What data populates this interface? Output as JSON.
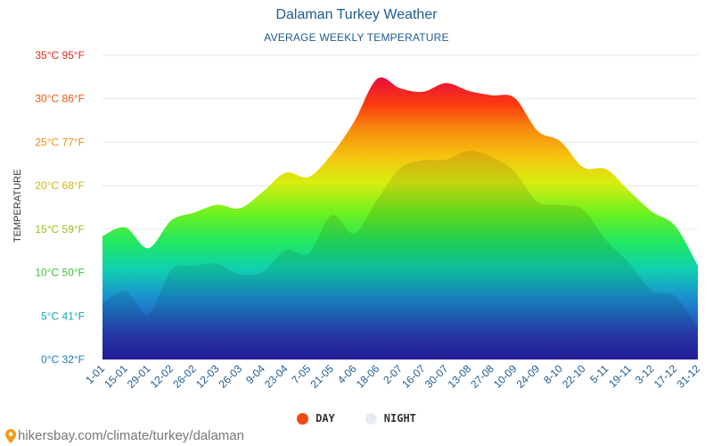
{
  "header": {
    "title": "Dalaman Turkey Weather",
    "subtitle": "AVERAGE WEEKLY TEMPERATURE"
  },
  "credit": {
    "text": "hikersbay.com/climate/turkey/dalaman"
  },
  "legend": {
    "day_label": "DAY",
    "night_label": "NIGHT",
    "day_color": "#f04a12",
    "night_color": "#e8ecf1"
  },
  "chart_data": {
    "type": "area",
    "title": "Dalaman Turkey Weather",
    "subtitle": "AVERAGE WEEKLY TEMPERATURE",
    "ylabel": "TEMPERATURE",
    "xlabel": "",
    "ylim": [
      0,
      35
    ],
    "y_ticks": [
      {
        "value": 0,
        "label": "0°C 32°F"
      },
      {
        "value": 5,
        "label": "5°C 41°F"
      },
      {
        "value": 10,
        "label": "10°C 50°F"
      },
      {
        "value": 15,
        "label": "15°C 59°F"
      },
      {
        "value": 20,
        "label": "20°C 68°F"
      },
      {
        "value": 25,
        "label": "25°C 77°F"
      },
      {
        "value": 30,
        "label": "30°C 86°F"
      },
      {
        "value": 35,
        "label": "35°C 95°F"
      }
    ],
    "y_tick_colors": [
      "#1a78c2",
      "#12a9b0",
      "#3cc13c",
      "#8fc41c",
      "#d4b314",
      "#ee8a10",
      "#ef5410",
      "#e8261a"
    ],
    "categories": [
      "1-01",
      "15-01",
      "29-01",
      "12-02",
      "26-02",
      "12-03",
      "26-03",
      "9-04",
      "23-04",
      "7-05",
      "21-05",
      "4-06",
      "18-06",
      "2-07",
      "16-07",
      "30-07",
      "13-08",
      "27-08",
      "10-09",
      "24-09",
      "8-10",
      "22-10",
      "5-11",
      "19-11",
      "3-12",
      "17-12",
      "31-12"
    ],
    "grid": true,
    "legend_position": "bottom",
    "series": [
      {
        "name": "DAY",
        "values": [
          14.2,
          15.2,
          12.8,
          16.0,
          16.9,
          17.8,
          17.4,
          19.3,
          21.5,
          21.0,
          23.6,
          27.4,
          32.3,
          31.2,
          30.8,
          31.8,
          30.9,
          30.4,
          30.1,
          26.3,
          25.1,
          22.1,
          21.9,
          19.4,
          17.0,
          15.4,
          10.8
        ]
      },
      {
        "name": "NIGHT",
        "values": [
          6.4,
          7.9,
          5.2,
          10.3,
          10.8,
          11.0,
          9.8,
          10.1,
          12.6,
          12.2,
          16.6,
          14.5,
          18.4,
          22.0,
          22.9,
          23.0,
          24.0,
          23.3,
          21.6,
          18.1,
          17.8,
          17.2,
          13.7,
          11.1,
          7.9,
          7.3,
          3.6
        ]
      }
    ]
  }
}
